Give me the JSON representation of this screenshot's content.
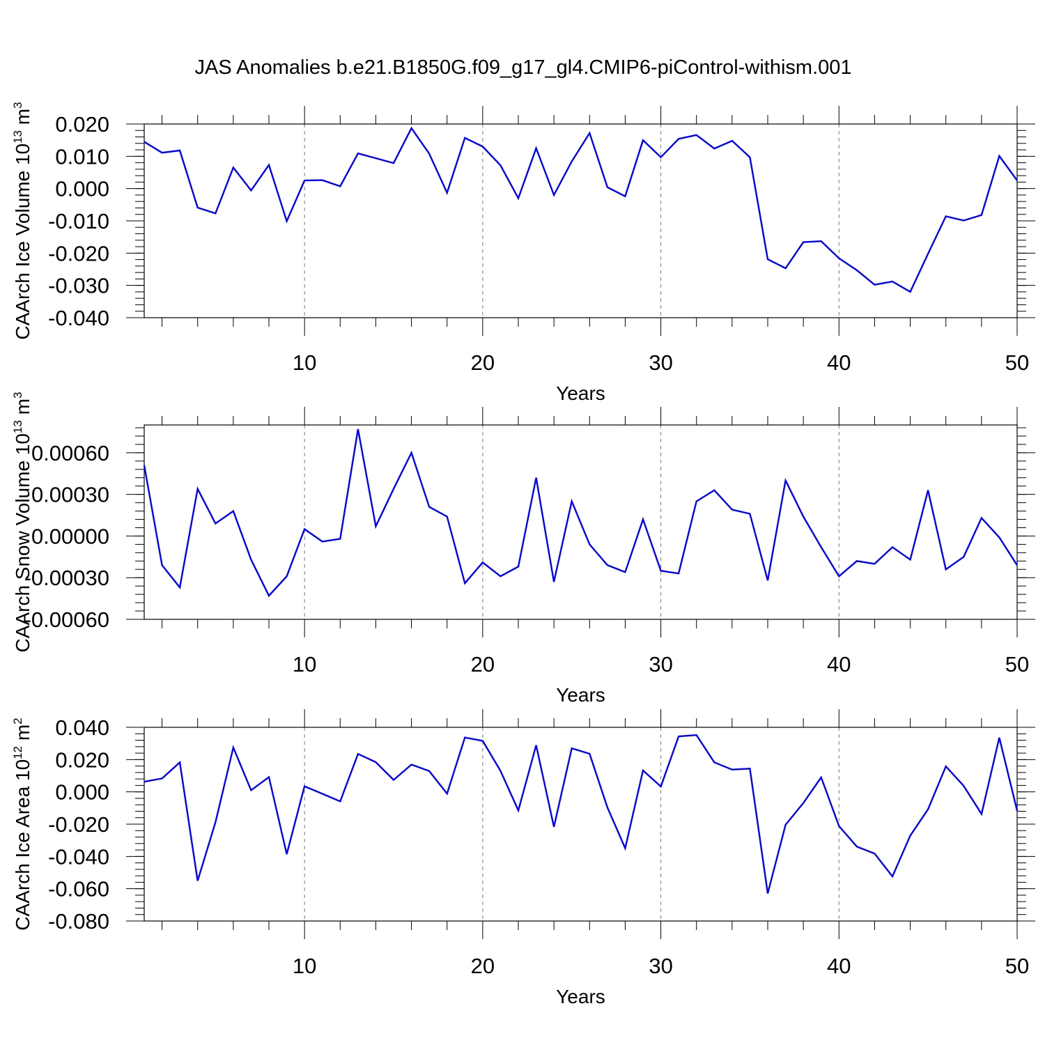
{
  "chart_data": [
    {
      "type": "line",
      "title": "JAS Anomalies b.e21.B1850G.f09_g17_gl4.CMIP6-piControl-withism.001",
      "xlabel": "Years",
      "ylabel": "CAArch Ice Volume 10",
      "ylabel_exp": "13",
      "ylabel_unit": " m",
      "ylabel_unit_exp": "3",
      "xlim": [
        1,
        50
      ],
      "ylim": [
        -0.04,
        0.02
      ],
      "xticks": [
        10,
        20,
        30,
        40,
        50
      ],
      "xtick_labels": [
        "10",
        "20",
        "30",
        "40",
        "50"
      ],
      "yticks": [
        -0.04,
        -0.03,
        -0.02,
        -0.01,
        0.0,
        0.01,
        0.02
      ],
      "ytick_labels": [
        "-0.040",
        "-0.030",
        "-0.020",
        "-0.010",
        "0.000",
        "0.010",
        "0.020"
      ],
      "grid_x": [
        10,
        20,
        30,
        40
      ],
      "color": "#0000ff",
      "x": [
        1,
        2,
        3,
        4,
        5,
        6,
        7,
        8,
        9,
        10,
        11,
        12,
        13,
        14,
        15,
        16,
        17,
        18,
        19,
        20,
        21,
        22,
        23,
        24,
        25,
        26,
        27,
        28,
        29,
        30,
        31,
        32,
        33,
        34,
        35,
        36,
        37,
        38,
        39,
        40,
        41,
        42,
        43,
        44,
        45,
        46,
        47,
        48,
        49,
        50
      ],
      "y": [
        0.0145,
        0.0111,
        0.0118,
        -0.0059,
        -0.0077,
        0.0065,
        -0.0006,
        0.0073,
        -0.0101,
        0.0025,
        0.0026,
        0.0007,
        0.0109,
        0.0094,
        0.0079,
        0.0187,
        0.0108,
        -0.0013,
        0.0157,
        0.013,
        0.0072,
        -0.003,
        0.0125,
        -0.002,
        0.0084,
        0.0172,
        0.0004,
        -0.0024,
        0.015,
        0.0097,
        0.0154,
        0.0166,
        0.0124,
        0.0148,
        0.0097,
        -0.0219,
        -0.0247,
        -0.0166,
        -0.0163,
        -0.0216,
        -0.0253,
        -0.0298,
        -0.0288,
        -0.032,
        -0.0202,
        -0.0086,
        -0.0099,
        -0.0082,
        0.0101,
        0.0025
      ]
    },
    {
      "type": "line",
      "xlabel": "Years",
      "ylabel": "CAArch Snow Volume 10",
      "ylabel_exp": "13",
      "ylabel_unit": " m",
      "ylabel_unit_exp": "3",
      "xlim": [
        1,
        50
      ],
      "ylim": [
        -0.0006,
        0.0008
      ],
      "xticks": [
        10,
        20,
        30,
        40,
        50
      ],
      "xtick_labels": [
        "10",
        "20",
        "30",
        "40",
        "50"
      ],
      "yticks": [
        -0.0006,
        -0.0003,
        0.0,
        0.0003,
        0.0006
      ],
      "ytick_labels": [
        "-0.00060",
        "-0.00030",
        "0.00000",
        "0.00030",
        "0.00060"
      ],
      "grid_x": [
        10,
        20,
        30,
        40
      ],
      "color": "#0000ff",
      "x": [
        1,
        2,
        3,
        4,
        5,
        6,
        7,
        8,
        9,
        10,
        11,
        12,
        13,
        14,
        15,
        16,
        17,
        18,
        19,
        20,
        21,
        22,
        23,
        24,
        25,
        26,
        27,
        28,
        29,
        30,
        31,
        32,
        33,
        34,
        35,
        36,
        37,
        38,
        39,
        40,
        41,
        42,
        43,
        44,
        45,
        46,
        47,
        48,
        49,
        50
      ],
      "y": [
        0.00051,
        -0.00021,
        -0.00037,
        0.00034,
        9e-05,
        0.00018,
        -0.00017,
        -0.00043,
        -0.00029,
        5e-05,
        -4e-05,
        -2e-05,
        0.00077,
        7e-05,
        0.00034,
        0.0006,
        0.00021,
        0.00014,
        -0.00034,
        -0.00019,
        -0.00029,
        -0.00022,
        0.00042,
        -0.00033,
        0.00025,
        -6e-05,
        -0.00021,
        -0.00026,
        0.00012,
        -0.00025,
        -0.00027,
        0.00025,
        0.00033,
        0.00019,
        0.00016,
        -0.00032,
        0.0004,
        0.00014,
        -8e-05,
        -0.00029,
        -0.00018,
        -0.0002,
        -8e-05,
        -0.00017,
        0.00033,
        -0.00024,
        -0.00015,
        0.00013,
        -1e-05,
        -0.00021
      ]
    },
    {
      "type": "line",
      "xlabel": "Years",
      "ylabel": "CAArch Ice Area 10",
      "ylabel_exp": "12",
      "ylabel_unit": " m",
      "ylabel_unit_exp": "2",
      "xlim": [
        1,
        50
      ],
      "ylim": [
        -0.08,
        0.04
      ],
      "xticks": [
        10,
        20,
        30,
        40,
        50
      ],
      "xtick_labels": [
        "10",
        "20",
        "30",
        "40",
        "50"
      ],
      "yticks": [
        -0.08,
        -0.06,
        -0.04,
        -0.02,
        0.0,
        0.02,
        0.04
      ],
      "ytick_labels": [
        "-0.080",
        "-0.060",
        "-0.040",
        "-0.020",
        "0.000",
        "0.020",
        "0.040"
      ],
      "grid_x": [
        10,
        20,
        30,
        40
      ],
      "color": "#0000ff",
      "x": [
        1,
        2,
        3,
        4,
        5,
        6,
        7,
        8,
        9,
        10,
        11,
        12,
        13,
        14,
        15,
        16,
        17,
        18,
        19,
        20,
        21,
        22,
        23,
        24,
        25,
        26,
        27,
        28,
        29,
        30,
        31,
        32,
        33,
        34,
        35,
        36,
        37,
        38,
        39,
        40,
        41,
        42,
        43,
        44,
        45,
        46,
        47,
        48,
        49,
        50
      ],
      "y": [
        0.0063,
        0.0083,
        0.0183,
        -0.0551,
        -0.0188,
        0.0275,
        0.001,
        0.0092,
        -0.0386,
        0.0035,
        -0.0012,
        -0.0059,
        0.0235,
        0.0184,
        0.0074,
        0.0169,
        0.0129,
        -0.0011,
        0.0337,
        0.0316,
        0.013,
        -0.0115,
        0.0289,
        -0.0217,
        0.027,
        0.0236,
        -0.0097,
        -0.0349,
        0.0133,
        0.0033,
        0.0344,
        0.0352,
        0.0183,
        0.0138,
        0.0144,
        -0.0629,
        -0.0204,
        -0.0069,
        0.009,
        -0.0212,
        -0.0339,
        -0.0382,
        -0.0524,
        -0.0271,
        -0.0108,
        0.0158,
        0.0037,
        -0.0137,
        0.0336,
        -0.0117
      ]
    }
  ]
}
